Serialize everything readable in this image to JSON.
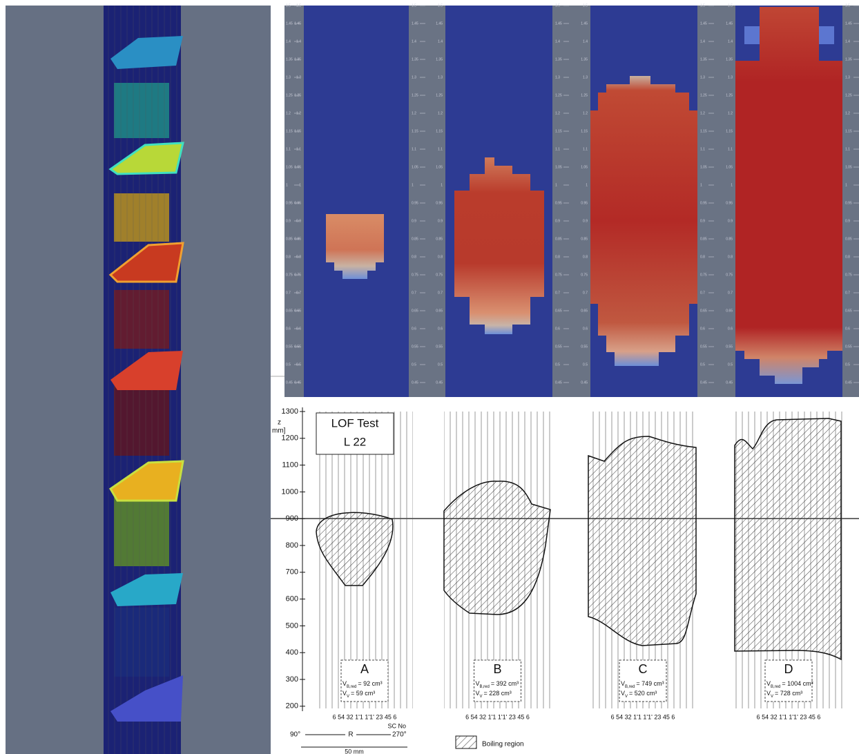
{
  "heatmap": {
    "ticks": [
      "1.5",
      "1.45",
      "1.4",
      "1.35",
      "1.3",
      "1.25",
      "1.2",
      "1.15",
      "1.1",
      "1.05",
      "1",
      "0.95",
      "0.9",
      "0.85",
      "0.8",
      "0.75",
      "0.7",
      "0.65",
      "0.6",
      "0.55",
      "0.5",
      "0.45"
    ]
  },
  "plot": {
    "axis_symbol": "z",
    "axis_unit": "mm]",
    "yticks": [
      "1300",
      "1200",
      "1100",
      "1000",
      "900",
      "800",
      "700",
      "600",
      "500",
      "400",
      "300",
      "200"
    ],
    "legend_box": [
      "LOF Test",
      "L 22"
    ],
    "x_labels": "6 54 32 1'1 1'1' 23 45 6",
    "sc_no": "SC No",
    "angle_left": "90°",
    "radius": "R",
    "angle_right": "270°",
    "scale": "50 mm",
    "legend": "Boiling region",
    "panels": [
      {
        "letter": "A",
        "v1": "V",
        "s1": "B,red",
        "t1": "= 92 cm³",
        "v2": "V",
        "s2": "V",
        "t2": "= 59 cm³"
      },
      {
        "letter": "B",
        "v1": "V",
        "s1": "B,red",
        "t1": "= 392 cm³",
        "v2": "V",
        "s2": "V",
        "t2": "= 228 cm³"
      },
      {
        "letter": "C",
        "v1": "V",
        "s1": "B,red",
        "t1": "= 749 cm³",
        "v2": "V",
        "s2": "V",
        "t2": "= 520 cm³"
      },
      {
        "letter": "D",
        "v1": "V",
        "s1": "B,red",
        "t1": "= 1004 cm³",
        "v2": "V",
        "s2": "V",
        "t2": "= 728 cm³"
      }
    ]
  }
}
